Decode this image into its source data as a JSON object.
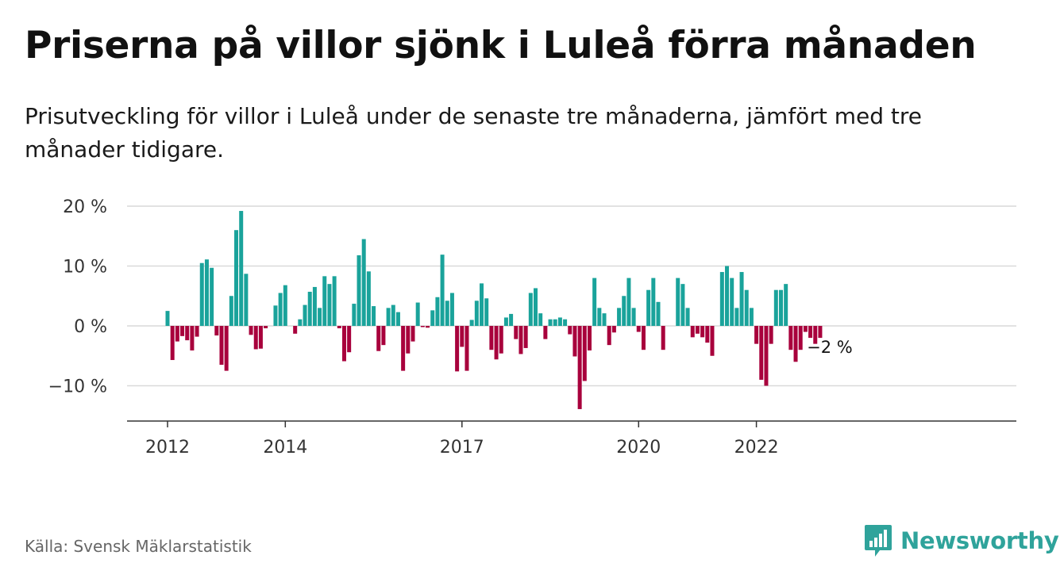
{
  "title": "Priserna på villor sjönk i Luleå förra månaden",
  "subtitle": "Prisutveckling för villor i Luleå under de senaste tre månaderna, jämfört med tre månader tidigare.",
  "source": "Källa: Svensk Mäklarstatistik",
  "brand": "Newsworthy",
  "colors": {
    "positive": "#1aa39b",
    "negative": "#a8003c",
    "brand": "#2fa39b"
  },
  "chart_data": {
    "type": "bar",
    "ylim": [
      -16,
      20
    ],
    "yticks": [
      {
        "value": 20,
        "label": "20 %"
      },
      {
        "value": 10,
        "label": "10 %"
      },
      {
        "value": 0,
        "label": "0 %"
      },
      {
        "value": -10,
        "label": "−10 %"
      }
    ],
    "xticks": [
      {
        "index": 0,
        "label": "2012"
      },
      {
        "index": 24,
        "label": "2014"
      },
      {
        "index": 60,
        "label": "2017"
      },
      {
        "index": 96,
        "label": "2020"
      },
      {
        "index": 120,
        "label": "2022"
      }
    ],
    "values": [
      2.5,
      -5.7,
      -2.6,
      -1.7,
      -2.4,
      -4.1,
      -1.8,
      10.5,
      11.1,
      9.7,
      -1.6,
      -6.5,
      -7.5,
      5.0,
      16.0,
      19.2,
      8.7,
      -1.5,
      -3.9,
      -3.8,
      -0.4,
      0.0,
      3.4,
      5.5,
      6.8,
      0.0,
      -1.3,
      1.1,
      3.5,
      5.7,
      6.5,
      3.0,
      8.3,
      7.0,
      8.3,
      -0.4,
      -5.9,
      -4.4,
      3.7,
      11.8,
      14.5,
      9.1,
      3.3,
      -4.2,
      -3.2,
      3.0,
      3.5,
      2.3,
      -7.5,
      -4.6,
      -2.6,
      3.9,
      -0.2,
      -0.3,
      2.6,
      4.8,
      11.9,
      4.2,
      5.5,
      -7.6,
      -3.5,
      -7.5,
      1.0,
      4.2,
      7.1,
      4.6,
      -4.0,
      -5.6,
      -4.6,
      1.4,
      2.0,
      -2.2,
      -4.7,
      -3.7,
      5.5,
      6.3,
      2.1,
      -2.2,
      1.1,
      1.1,
      1.4,
      1.1,
      -1.4,
      -5.1,
      -13.9,
      -9.2,
      -4.1,
      8.0,
      3.0,
      2.1,
      -3.2,
      -1.1,
      3.0,
      5.0,
      8.0,
      3.0,
      -1.0,
      -4.0,
      6.0,
      8.0,
      4.0,
      -4.0,
      0.0,
      0.0,
      8.0,
      7.0,
      3.0,
      -1.9,
      -1.3,
      -1.9,
      -2.8,
      -5.0,
      0.0,
      9.0,
      10.0,
      8.0,
      3.0,
      9.0,
      6.0,
      3.0,
      -3.0,
      -9.0,
      -10.0,
      -3.0,
      6.0,
      6.0,
      7.0,
      -4.0,
      -6.0,
      -4.0,
      -1.0,
      -2.0,
      -3.0,
      -2.0
    ],
    "annotation": {
      "index": 134,
      "label": "−2 %"
    }
  }
}
